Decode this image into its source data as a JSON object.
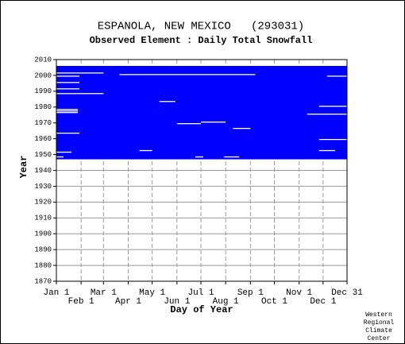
{
  "chart_data": {
    "type": "coverage",
    "title": "ESPANOLA, NEW MEXICO   (293031)",
    "subtitle": "Observed Element : Daily Total Snowfall",
    "xlabel": "Day of Year",
    "ylabel": "Year",
    "credit": [
      "Western",
      "Regional",
      "Climate",
      "Center"
    ],
    "color": "#0000ff",
    "xlim": [
      1,
      365
    ],
    "ylim": [
      1870,
      2010
    ],
    "xticks": [
      {
        "value": 1,
        "label": "Jan 1"
      },
      {
        "value": 32,
        "label": "Feb 1"
      },
      {
        "value": 60,
        "label": "Mar 1"
      },
      {
        "value": 91,
        "label": "Apr 1"
      },
      {
        "value": 121,
        "label": "May 1"
      },
      {
        "value": 152,
        "label": "Jun 1"
      },
      {
        "value": 182,
        "label": "Jul 1"
      },
      {
        "value": 213,
        "label": "Aug 1"
      },
      {
        "value": 244,
        "label": "Sep 1"
      },
      {
        "value": 274,
        "label": "Oct 1"
      },
      {
        "value": 305,
        "label": "Nov 1"
      },
      {
        "value": 335,
        "label": "Dec 1"
      },
      {
        "value": 365,
        "label": "Dec 31"
      }
    ],
    "yticks": [
      1870,
      1880,
      1890,
      1900,
      1910,
      1920,
      1930,
      1940,
      1950,
      1960,
      1970,
      1980,
      1990,
      2000,
      2010
    ],
    "coverage": {
      "years": [
        1947,
        2006
      ],
      "days": [
        1,
        365
      ]
    },
    "gaps": [
      [
        2001,
        1,
        60
      ],
      [
        2000,
        80,
        250
      ],
      [
        1999,
        1,
        30
      ],
      [
        1995,
        1,
        30
      ],
      [
        1991,
        1,
        30
      ],
      [
        1988,
        1,
        60
      ],
      [
        1978,
        1,
        28
      ],
      [
        1977,
        1,
        28
      ],
      [
        1976,
        1,
        28
      ],
      [
        1969,
        152,
        182
      ],
      [
        1970,
        182,
        213
      ],
      [
        1966,
        222,
        244
      ],
      [
        1963,
        1,
        30
      ],
      [
        1952,
        105,
        121
      ],
      [
        1951,
        1,
        20
      ],
      [
        1948,
        1,
        10
      ],
      [
        1948,
        175,
        185
      ],
      [
        1948,
        211,
        230
      ],
      [
        1999,
        340,
        365
      ],
      [
        1980,
        330,
        365
      ],
      [
        1975,
        315,
        365
      ],
      [
        1959,
        330,
        365
      ],
      [
        1952,
        330,
        350
      ],
      [
        1983,
        130,
        150
      ]
    ]
  }
}
